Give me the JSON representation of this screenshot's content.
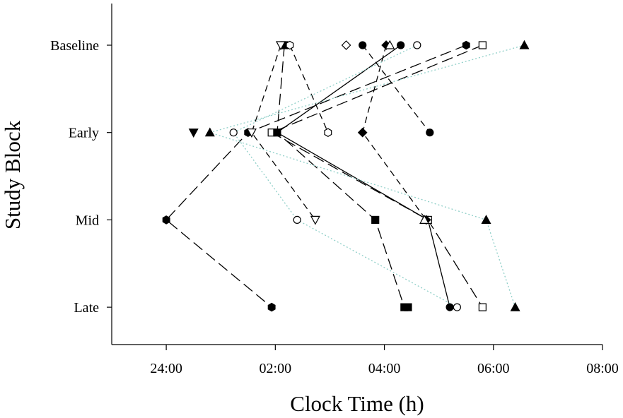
{
  "chart_data": {
    "type": "scatter",
    "title": "",
    "xlabel": "Clock Time (h)",
    "ylabel": "Study Block",
    "x_unit": "hours (clock time)",
    "xlim": [
      "23:00",
      "08:00"
    ],
    "x_ticks": [
      "24:00",
      "02:00",
      "04:00",
      "06:00",
      "08:00"
    ],
    "categories": [
      "Baseline",
      "Early",
      "Mid",
      "Late"
    ],
    "grid": false,
    "legend": "none",
    "series": [
      {
        "marker": "filled-circle",
        "line": "solid",
        "points": [
          {
            "block": "Baseline",
            "time": "04:18"
          },
          {
            "block": "Early",
            "time": "02:02"
          },
          {
            "block": "Mid",
            "time": "04:48"
          },
          {
            "block": "Late",
            "time": "05:12"
          }
        ]
      },
      {
        "marker": "open-square",
        "line": "long-dash",
        "points": [
          {
            "block": "Baseline",
            "time": "05:48"
          },
          {
            "block": "Early",
            "time": "01:56"
          },
          {
            "block": "Mid",
            "time": "04:48"
          },
          {
            "block": "Late",
            "time": "05:48"
          }
        ]
      },
      {
        "marker": "filled-square",
        "line": "long-dash",
        "points": [
          {
            "block": "Baseline",
            "time": "02:10"
          },
          {
            "block": "Early",
            "time": "02:02"
          },
          {
            "block": "Mid",
            "time": "03:50"
          },
          {
            "block": "Late",
            "time": "04:22"
          }
        ]
      },
      {
        "marker": "filled-hexagon",
        "line": "long-dash",
        "points": [
          {
            "block": "Baseline",
            "time": "05:30"
          },
          {
            "block": "Early",
            "time": "01:30"
          },
          {
            "block": "Mid",
            "time": "24:00"
          },
          {
            "block": "Late",
            "time": "01:56"
          }
        ]
      },
      {
        "marker": "filled-diamond",
        "line": "dash",
        "points": [
          {
            "block": "Baseline",
            "time": "04:02"
          },
          {
            "block": "Early",
            "time": "03:36"
          },
          {
            "block": "Mid",
            "time": "04:46"
          }
        ]
      },
      {
        "marker": "filled-triangle-up",
        "line": "dotted",
        "points": [
          {
            "block": "Baseline",
            "time": "06:34"
          },
          {
            "block": "Early",
            "time": "00:48"
          },
          {
            "block": "Mid",
            "time": "05:52"
          },
          {
            "block": "Late",
            "time": "06:24"
          }
        ]
      },
      {
        "marker": "open-triangle-down",
        "line": "dash",
        "points": [
          {
            "block": "Baseline",
            "time": "02:06"
          },
          {
            "block": "Early",
            "time": "01:34"
          },
          {
            "block": "Mid",
            "time": "02:44"
          }
        ]
      },
      {
        "marker": "open-hexagon",
        "line": "dash",
        "points": [
          {
            "block": "Baseline",
            "time": "02:16"
          },
          {
            "block": "Early",
            "time": "02:58"
          }
        ]
      },
      {
        "marker": "open-circle",
        "line": "dotted",
        "points": [
          {
            "block": "Baseline",
            "time": "04:36"
          },
          {
            "block": "Early",
            "time": "01:14"
          },
          {
            "block": "Mid",
            "time": "02:24"
          },
          {
            "block": "Late",
            "time": "05:20"
          }
        ]
      },
      {
        "marker": "filled-circle",
        "line": "dash",
        "points": [
          {
            "block": "Baseline",
            "time": "03:36"
          },
          {
            "block": "Early",
            "time": "04:50"
          }
        ]
      },
      {
        "marker": "open-triangle-up",
        "line": "none",
        "points": [
          {
            "block": "Baseline",
            "time": "04:06"
          },
          {
            "block": "Mid",
            "time": "04:44"
          }
        ]
      },
      {
        "marker": "open-diamond",
        "line": "none",
        "points": [
          {
            "block": "Baseline",
            "time": "03:18"
          }
        ]
      },
      {
        "marker": "filled-triangle-down",
        "line": "none",
        "points": [
          {
            "block": "Early",
            "time": "00:30"
          }
        ]
      },
      {
        "marker": "filled-square",
        "line": "none",
        "points": [
          {
            "block": "Late",
            "time": "04:26"
          }
        ]
      }
    ]
  }
}
